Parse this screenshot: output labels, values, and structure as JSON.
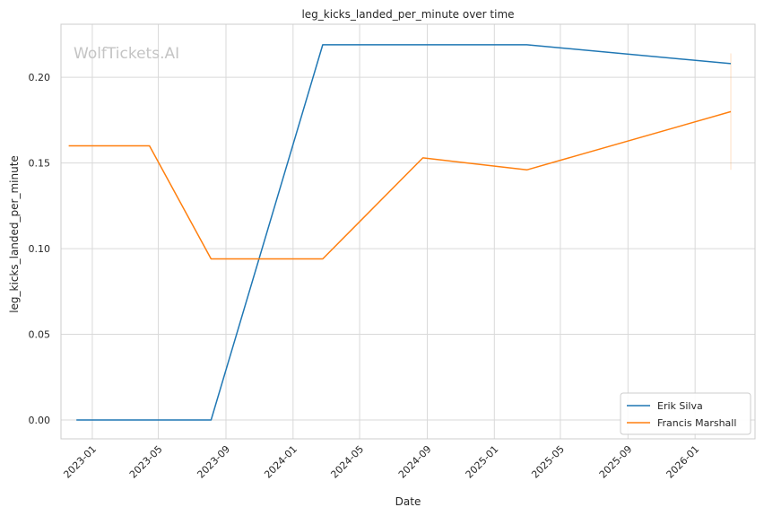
{
  "chart_data": {
    "type": "line",
    "title": "leg_kicks_landed_per_minute over time",
    "xlabel": "Date",
    "ylabel": "leg_kicks_landed_per_minute",
    "watermark": "WolfTickets.AI",
    "x_tick_labels": [
      "2023-01",
      "2023-05",
      "2023-09",
      "2024-01",
      "2024-05",
      "2024-09",
      "2025-01",
      "2025-05",
      "2025-09",
      "2026-01"
    ],
    "y_ticks": [
      0.0,
      0.05,
      0.1,
      0.15,
      0.2
    ],
    "y_tick_labels": [
      "0.00",
      "0.05",
      "0.10",
      "0.15",
      "0.20"
    ],
    "ylim": [
      -0.011,
      0.231
    ],
    "xlim": [
      "2022-11-05",
      "2026-04-20"
    ],
    "grid": true,
    "legend_position": "lower right",
    "series": [
      {
        "name": "Erik Silva",
        "color": "#1f77b4",
        "x": [
          "2022-12-03",
          "2023-08-05",
          "2024-02-24",
          "2025-03-01",
          "2026-03-07"
        ],
        "y": [
          0.0,
          0.0,
          0.219,
          0.219,
          0.208
        ]
      },
      {
        "name": "Francis Marshall",
        "color": "#ff7f0e",
        "x": [
          "2022-11-19",
          "2023-04-15",
          "2023-08-05",
          "2024-02-24",
          "2024-08-24",
          "2025-03-01",
          "2026-03-07"
        ],
        "y": [
          0.16,
          0.16,
          0.094,
          0.094,
          0.153,
          0.146,
          0.18
        ]
      }
    ],
    "error_band": {
      "series": "Francis Marshall",
      "x": "2026-03-07",
      "low": 0.146,
      "high": 0.214,
      "color": "#ff7f0e"
    }
  }
}
